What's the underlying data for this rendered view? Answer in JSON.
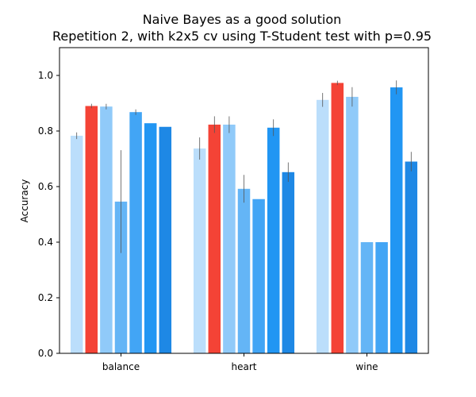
{
  "chart_data": {
    "type": "bar",
    "title": "Naive Bayes as a good solution",
    "subtitle": "Repetition 2, with k2x5 cv using T-Student test with p=0.95",
    "xlabel": "",
    "ylabel": "Accuracy",
    "ylim": [
      0,
      1.1
    ],
    "yticks": [
      "0.0",
      "0.2",
      "0.4",
      "0.6",
      "0.8",
      "1.0"
    ],
    "grid": false,
    "categories": [
      "balance",
      "heart",
      "wine"
    ],
    "series": [
      {
        "values": [
          0.783,
          0.737,
          0.912
        ],
        "errors": [
          0.012,
          0.04,
          0.025
        ],
        "color": "#bbdefb"
      },
      {
        "values": [
          0.89,
          0.823,
          0.973
        ],
        "errors": [
          0.008,
          0.03,
          0.008
        ],
        "color": "#f44336"
      },
      {
        "values": [
          0.888,
          0.823,
          0.923
        ],
        "errors": [
          0.01,
          0.03,
          0.035
        ],
        "color": "#90caf9"
      },
      {
        "values": [
          0.546,
          0.592,
          0.4
        ],
        "errors": [
          0.185,
          0.05,
          0.0
        ],
        "color": "#64b5f6"
      },
      {
        "values": [
          0.868,
          0.555,
          0.4
        ],
        "errors": [
          0.01,
          0.0,
          0.0
        ],
        "color": "#42a5f5"
      },
      {
        "values": [
          0.828,
          0.812,
          0.957
        ],
        "errors": [
          0.0,
          0.03,
          0.025
        ],
        "color": "#2196f3"
      },
      {
        "values": [
          0.815,
          0.652,
          0.69
        ],
        "errors": [
          0.0,
          0.035,
          0.035
        ],
        "color": "#1e88e5"
      }
    ]
  }
}
